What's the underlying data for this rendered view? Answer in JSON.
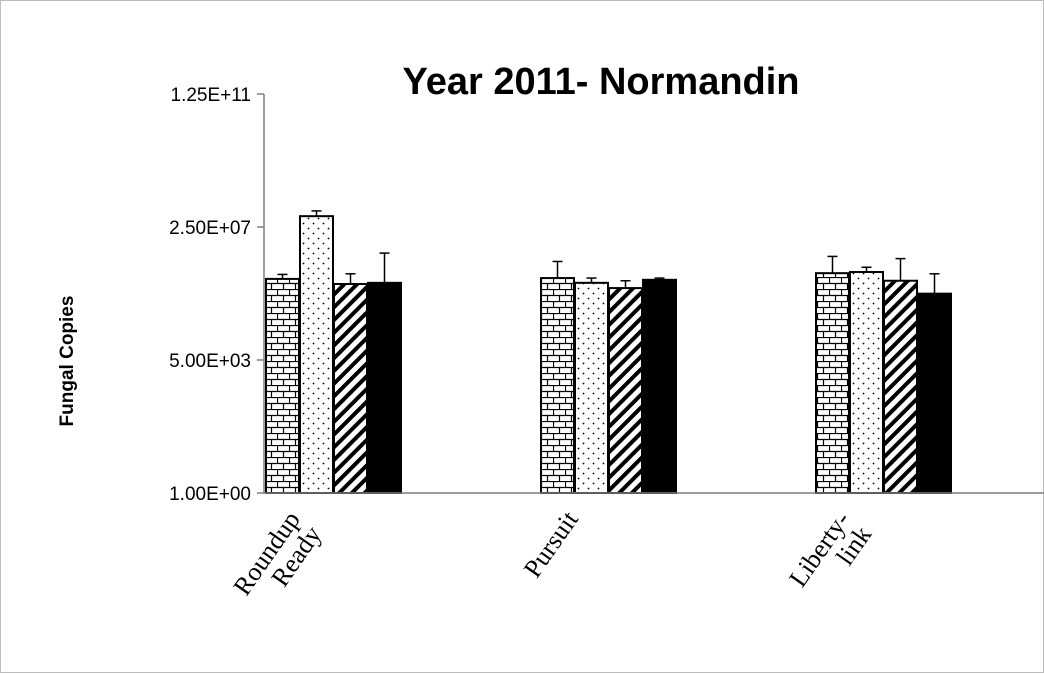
{
  "chart_data": {
    "type": "bar",
    "title": "Year 2011- Normandin",
    "ylabel": "Fungal Copies",
    "xlabel": "",
    "y_scale": "log",
    "ylim": [
      1,
      125000000000
    ],
    "y_ticks": [
      {
        "value": 1,
        "label": "1.00E+00"
      },
      {
        "value": 5000,
        "label": "5.00E+03"
      },
      {
        "value": 25000000,
        "label": "2.50E+07"
      },
      {
        "value": 125000000000,
        "label": "1.25E+11"
      }
    ],
    "categories": [
      {
        "lines": [
          "Roundup",
          "Ready"
        ]
      },
      {
        "lines": [
          "Pursuit"
        ]
      },
      {
        "lines": [
          "Liberty-",
          "link"
        ]
      }
    ],
    "series": [
      {
        "pattern": "brick",
        "values": [
          900000,
          950000,
          1300000
        ],
        "errors": [
          300000,
          1800000,
          2500000
        ]
      },
      {
        "pattern": "dots",
        "values": [
          50000000,
          700000,
          1400000
        ],
        "errors": [
          20000000,
          250000,
          500000
        ]
      },
      {
        "pattern": "diagonal",
        "values": [
          650000,
          500000,
          800000
        ],
        "errors": [
          600000,
          300000,
          2500000
        ]
      },
      {
        "pattern": "solid",
        "values": [
          700000,
          850000,
          350000
        ],
        "errors": [
          4000000,
          100000,
          900000
        ]
      }
    ],
    "grid": false,
    "legend": "none"
  }
}
